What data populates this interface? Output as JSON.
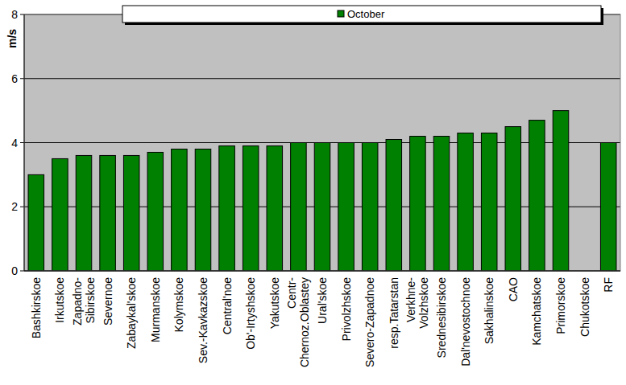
{
  "chart_data": {
    "type": "bar",
    "y_label": "m/s",
    "categories": [
      "Bashkirskoe",
      "Irkutskoe",
      "Zapadno-Sibirskoe",
      "Severnoe",
      "Zabaykal'skoe",
      "Murmanskoe",
      "Kolymskoe",
      "Sev.-Kavkazskoe",
      "Central'noe",
      "Ob'-Irtyshskoe",
      "Yakutskoe",
      "Centr-Chernoz.Oblastey",
      "Ural'skoe",
      "Privolzhskoe",
      "Severo-Zapadnoe",
      "resp.Tatarstan",
      "Verkhne-Volzhskoe",
      "Srednesibirskoe",
      "Dal'nevostochnoe",
      "Sakhalinskoe",
      "CAO",
      "Kamchatskoe",
      "Primorskoe",
      "Chukotskoe",
      "RF"
    ],
    "series": [
      {
        "name": "October",
        "color": "#008000",
        "values": [
          3.0,
          3.5,
          3.6,
          3.6,
          3.6,
          3.7,
          3.8,
          3.8,
          3.9,
          3.9,
          3.9,
          4.0,
          4.0,
          4.0,
          4.0,
          4.1,
          4.2,
          4.2,
          4.3,
          4.3,
          4.5,
          4.7,
          5.0,
          null,
          4.0
        ]
      }
    ],
    "ylim": [
      0,
      8
    ],
    "yticks": [
      0,
      2,
      4,
      6,
      8
    ],
    "grid": true,
    "legend": "top"
  }
}
